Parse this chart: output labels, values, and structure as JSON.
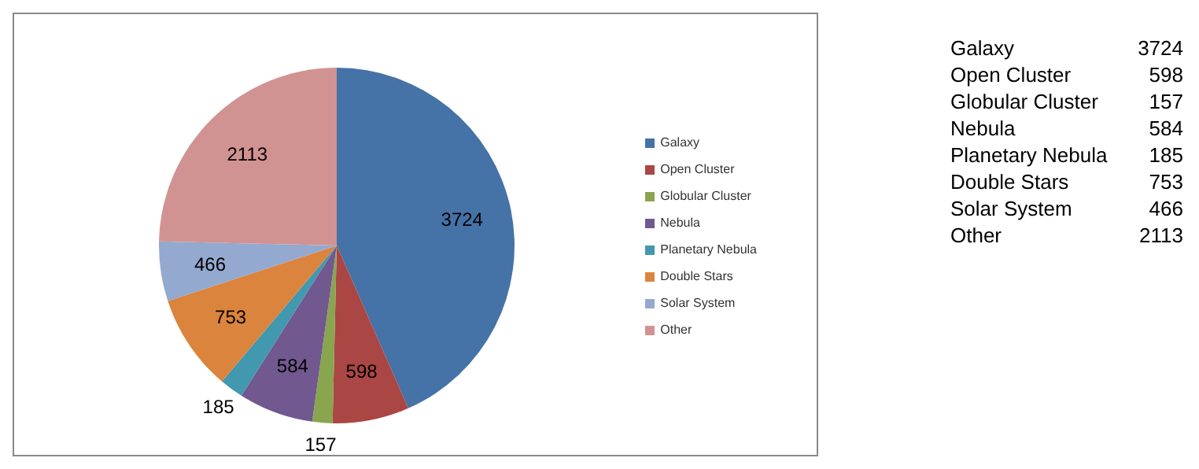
{
  "chart_data": [
    {
      "type": "pie",
      "categories": [
        "Galaxy",
        "Open Cluster",
        "Globular Cluster",
        "Nebula",
        "Planetary Nebula",
        "Double Stars",
        "Solar System",
        "Other"
      ],
      "values": [
        3724,
        598,
        157,
        584,
        185,
        753,
        466,
        2113
      ],
      "colors": [
        "#4572a7",
        "#aa4643",
        "#89a54e",
        "#71588f",
        "#4198af",
        "#db843d",
        "#93a9cf",
        "#d19392"
      ],
      "data_labels": true,
      "legend": "right"
    },
    {
      "type": "other",
      "categories": [
        "Galaxy",
        "Open Cluster",
        "Globular Cluster",
        "Nebula",
        "Planetary Nebula",
        "Double Stars",
        "Solar System",
        "Other"
      ],
      "values": [
        3724,
        598,
        157,
        584,
        185,
        753,
        466,
        2113
      ],
      "data_labels": true
    }
  ]
}
